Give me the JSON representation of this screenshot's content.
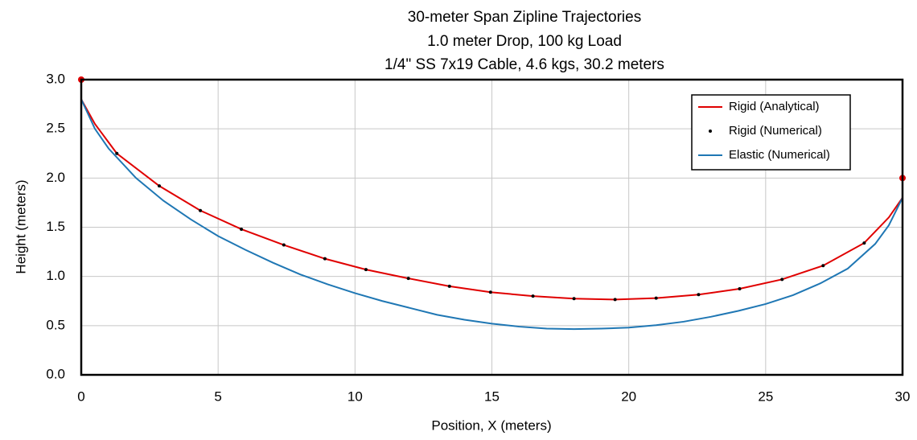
{
  "chart_data": {
    "type": "line",
    "title": [
      "30-meter Span Zipline Trajectories",
      "1.0 meter Drop, 100 kg Load",
      "1/4\" SS 7x19 Cable, 4.6 kgs, 30.2 meters"
    ],
    "x_label": "Position, X (meters)",
    "y_label": "Height (meters)",
    "xlim": [
      0,
      30
    ],
    "xticks": [
      0,
      5,
      10,
      15,
      20,
      25,
      30
    ],
    "ylim": [
      0,
      3
    ],
    "yticks": [
      {
        "value": 0,
        "label": "0.0"
      },
      {
        "value": 0.5,
        "label": "0.5"
      },
      {
        "value": 1,
        "label": "1.0"
      },
      {
        "value": 1.5,
        "label": "1.5"
      },
      {
        "value": 2,
        "label": "2.0"
      },
      {
        "value": 2.5,
        "label": "2.5"
      },
      {
        "value": 3,
        "label": "3.0"
      }
    ],
    "grid": true,
    "legend": "upper right",
    "series": [
      {
        "name": "Rigid (Analytical)",
        "color": "#e00000",
        "style": "line",
        "x": [
          0,
          0,
          0.5,
          1.3,
          2.85,
          4.35,
          5.85,
          7.4,
          8.9,
          10.4,
          11.95,
          13.45,
          14.95,
          16.5,
          18.0,
          19.5,
          21.0,
          22.55,
          24.05,
          25.6,
          27.1,
          28.6,
          29.5,
          30,
          30
        ],
        "values": [
          3.0,
          2.8,
          2.55,
          2.25,
          1.92,
          1.67,
          1.48,
          1.32,
          1.18,
          1.07,
          0.98,
          0.9,
          0.84,
          0.8,
          0.775,
          0.765,
          0.78,
          0.815,
          0.875,
          0.97,
          1.11,
          1.34,
          1.6,
          1.8,
          2.0
        ]
      },
      {
        "name": "Rigid (Numerical)",
        "color": "#000000",
        "style": "dots",
        "x": [
          1.3,
          2.85,
          4.35,
          5.85,
          7.4,
          8.9,
          10.4,
          11.95,
          13.45,
          14.95,
          16.5,
          18.0,
          19.5,
          21.0,
          22.55,
          24.05,
          25.6,
          27.1,
          28.6
        ],
        "values": [
          2.25,
          1.92,
          1.67,
          1.48,
          1.32,
          1.18,
          1.07,
          0.98,
          0.9,
          0.84,
          0.8,
          0.775,
          0.765,
          0.78,
          0.815,
          0.875,
          0.97,
          1.11,
          1.34
        ]
      },
      {
        "name": "Elastic (Numerical)",
        "color": "#1f77b4",
        "style": "line",
        "x": [
          0,
          0.5,
          1,
          2,
          3,
          4,
          5,
          6,
          7,
          8,
          9,
          10,
          11,
          12,
          13,
          14,
          15,
          16,
          17,
          18,
          19,
          20,
          21,
          22,
          23,
          24,
          25,
          26,
          27,
          28,
          29,
          29.5,
          30
        ],
        "values": [
          2.8,
          2.5,
          2.3,
          2.0,
          1.77,
          1.58,
          1.41,
          1.27,
          1.14,
          1.02,
          0.92,
          0.83,
          0.75,
          0.68,
          0.61,
          0.56,
          0.52,
          0.49,
          0.47,
          0.465,
          0.47,
          0.48,
          0.505,
          0.54,
          0.59,
          0.65,
          0.72,
          0.81,
          0.93,
          1.08,
          1.33,
          1.52,
          1.8
        ]
      }
    ],
    "anchors": {
      "color": "#e00000",
      "x": [
        0,
        30
      ],
      "values": [
        3.0,
        2.0
      ]
    }
  }
}
